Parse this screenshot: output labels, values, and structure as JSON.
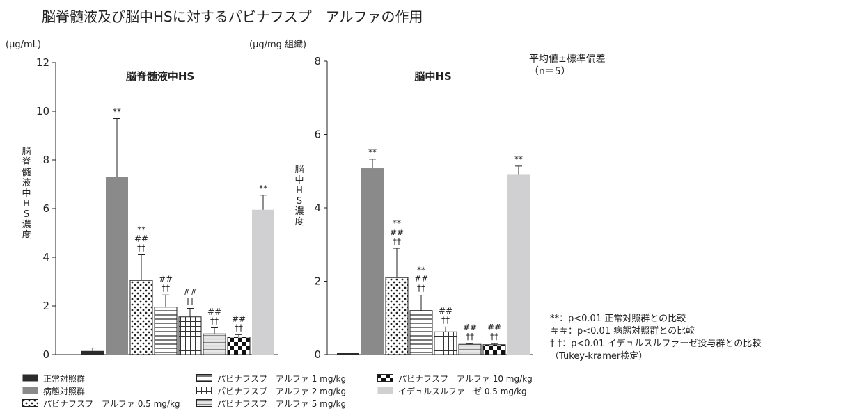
{
  "page": {
    "title": "脳脊髄液及び脳中HSに対するパビナフスプ　アルファの作用",
    "stats_note": [
      "平均値±標準偏差",
      "（n＝5）"
    ],
    "significance_notes": [
      "**：p<0.01 正常対照群との比較",
      "＃＃：p<0.01 病態対照群との比較",
      "†  †：p<0.01 イデュルスルファーゼ投与群との比較",
      "（Tukey-kramer検定）"
    ]
  },
  "groups": [
    {
      "name": "正常対照群",
      "pattern": "dark"
    },
    {
      "name": "病態対照群",
      "pattern": "gray"
    },
    {
      "name": "パビナフスプ　アルファ 0.5 mg/kg",
      "pattern": "dots"
    },
    {
      "name": "パビナフスプ　アルファ 1 mg/kg",
      "pattern": "hlines"
    },
    {
      "name": "パビナフスプ　アルファ 2 mg/kg",
      "pattern": "grid"
    },
    {
      "name": "パビナフスプ　アルファ 5 mg/kg",
      "pattern": "graylines"
    },
    {
      "name": "パビナフスプ　アルファ 10 mg/kg",
      "pattern": "checker"
    },
    {
      "name": "イデュルスルファーゼ 0.5 mg/kg",
      "pattern": "light"
    }
  ],
  "colors": {
    "dark": "#2b2b2b",
    "gray": "#8a8a8a",
    "light": "#d0d0d2",
    "graylines": "#b0b0b0"
  },
  "chart_data": [
    {
      "type": "bar",
      "title": "脳脊髄液中HS",
      "unit": "(μg/mL)",
      "ylabel": "脳脊髄液中HS濃度",
      "ylim": [
        0,
        12
      ],
      "yticks": [
        "0",
        "2",
        "4",
        "6",
        "8",
        "10",
        "12"
      ],
      "yticks_values": [
        0,
        2,
        4,
        6,
        8,
        10,
        12
      ],
      "values": [
        0.15,
        7.3,
        3.05,
        1.95,
        1.55,
        0.85,
        0.72,
        5.95
      ],
      "errors": [
        0.12,
        2.4,
        1.05,
        0.5,
        0.35,
        0.25,
        0.1,
        0.6
      ],
      "annotations": [
        [],
        [
          "**"
        ],
        [
          "**",
          "##",
          "††"
        ],
        [
          "##",
          "††"
        ],
        [
          "##",
          "††"
        ],
        [
          "##",
          "††"
        ],
        [
          "##",
          "††"
        ],
        [
          "**"
        ]
      ]
    },
    {
      "type": "bar",
      "title": "脳中HS",
      "unit": "(μg/mg 組織)",
      "ylabel": "脳中HS濃度",
      "ylim": [
        0,
        8
      ],
      "yticks": [
        "0",
        "2",
        "4",
        "6",
        "8"
      ],
      "yticks_values": [
        0,
        2,
        4,
        6,
        8
      ],
      "values": [
        0.04,
        5.08,
        2.1,
        1.2,
        0.62,
        0.28,
        0.27,
        4.92
      ],
      "errors": [
        0,
        0.25,
        0.8,
        0.42,
        0.13,
        0.02,
        0.03,
        0.22
      ],
      "annotations": [
        [],
        [
          "**"
        ],
        [
          "**",
          "##",
          "††"
        ],
        [
          "**",
          "##",
          "††"
        ],
        [
          "##",
          "††"
        ],
        [
          "##",
          "††"
        ],
        [
          "##",
          "††"
        ],
        [
          "**"
        ]
      ]
    }
  ]
}
